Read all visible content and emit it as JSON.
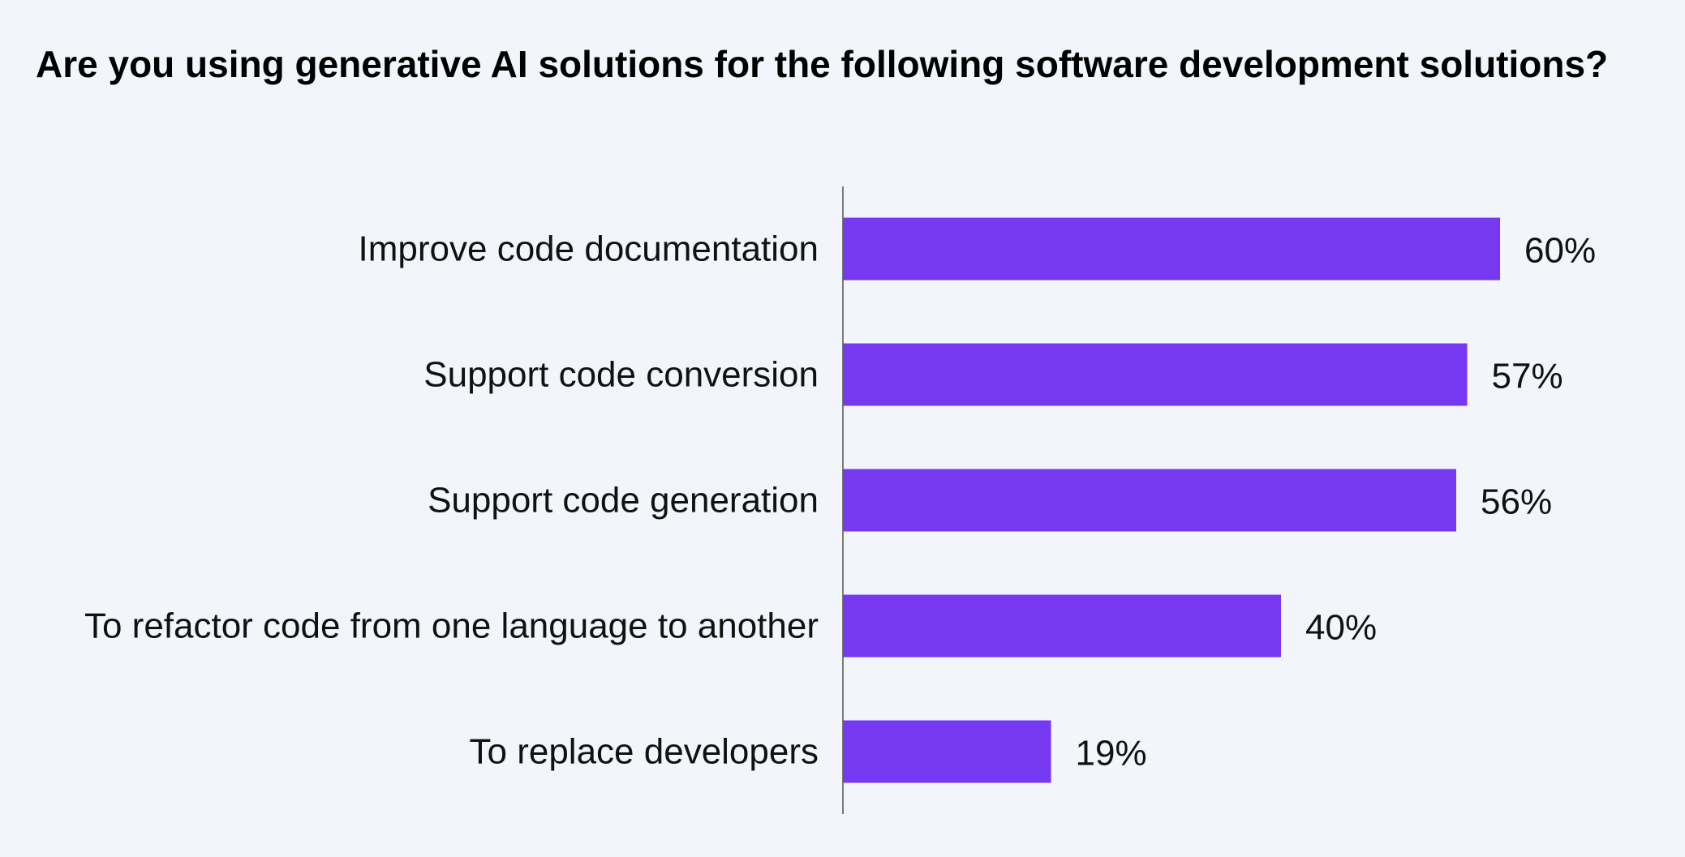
{
  "chart_data": {
    "type": "bar",
    "orientation": "horizontal",
    "title": "Are you using generative AI solutions for the following software development solutions?",
    "categories": [
      "Improve code documentation",
      "Support code conversion",
      "Support code generation",
      "To refactor code from one language to another",
      "To replace developers"
    ],
    "values": [
      60,
      57,
      56,
      40,
      19
    ],
    "value_labels": [
      "60%",
      "57%",
      "56%",
      "40%",
      "19%"
    ],
    "unit": "%",
    "xlim": [
      0,
      100
    ],
    "grid": false,
    "legend": "none",
    "colors": {
      "bar": "#7638f0",
      "axis": "#7a7a7a",
      "background": "#f2f5f9",
      "text": "#111111"
    }
  }
}
